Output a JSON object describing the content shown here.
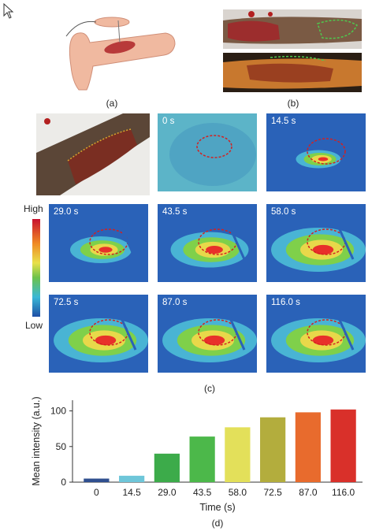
{
  "panels": {
    "a_label": "(a)",
    "b_label": "(b)",
    "c_label": "(c)",
    "d_label": "(d)"
  },
  "colorbar": {
    "high": "High",
    "low": "Low"
  },
  "frames": [
    {
      "time": "0 s"
    },
    {
      "time": "14.5 s"
    },
    {
      "time": "29.0 s"
    },
    {
      "time": "43.5 s"
    },
    {
      "time": "58.0 s"
    },
    {
      "time": "72.5 s"
    },
    {
      "time": "87.0 s"
    },
    {
      "time": "116.0 s"
    }
  ],
  "chart_data": {
    "type": "bar",
    "categories": [
      "0",
      "14.5",
      "29.0",
      "43.5",
      "58.0",
      "72.5",
      "87.0",
      "116.0"
    ],
    "values": [
      5,
      9,
      40,
      64,
      77,
      91,
      98,
      102
    ],
    "colors": [
      "#2f4f8f",
      "#6ec6d9",
      "#3cab4a",
      "#4cb84a",
      "#e3e05a",
      "#b3ad3d",
      "#e86b2d",
      "#d9302a"
    ],
    "xlabel": "Time (s)",
    "ylabel": "Mean intensity (a.u.)",
    "ylim": [
      0,
      115
    ],
    "yticks": [
      0,
      50,
      100
    ],
    "grid": false
  }
}
